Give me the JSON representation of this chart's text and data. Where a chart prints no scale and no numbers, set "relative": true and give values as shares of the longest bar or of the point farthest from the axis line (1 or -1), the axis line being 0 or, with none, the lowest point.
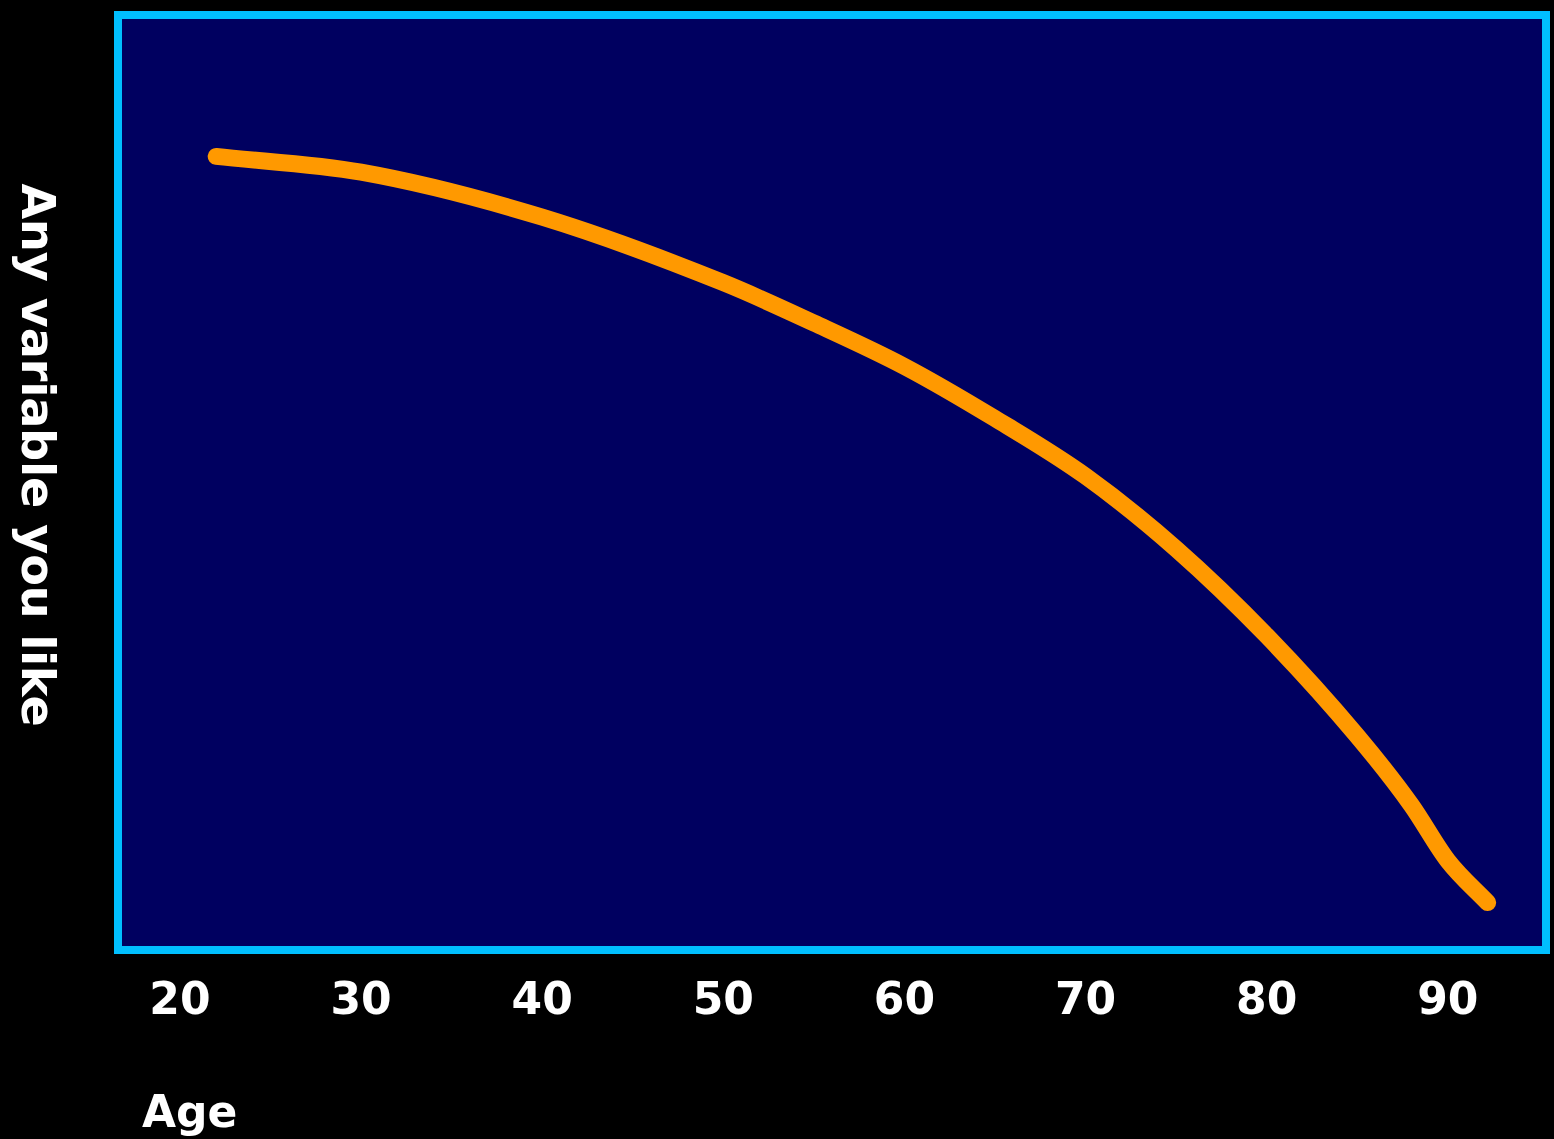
{
  "chart_data": {
    "type": "line",
    "xlabel": "Age",
    "ylabel": "Any variable you like",
    "relative": true,
    "x": [
      22,
      30,
      40,
      50,
      55,
      60,
      65,
      70,
      75,
      80,
      85,
      88,
      90,
      92.2
    ],
    "series": [
      {
        "color": "#ff9900",
        "values": [
          1,
          0.98,
          0.923,
          0.84,
          0.789,
          0.734,
          0.668,
          0.595,
          0.503,
          0.393,
          0.266,
          0.178,
          0.108,
          0.055
        ]
      }
    ],
    "xlim": [
      16.8,
      95.2
    ],
    "xticks": [
      20,
      30,
      40,
      50,
      60,
      70,
      80,
      90
    ],
    "grid": false,
    "legend": false,
    "marker": "none",
    "line_style": "solid"
  }
}
